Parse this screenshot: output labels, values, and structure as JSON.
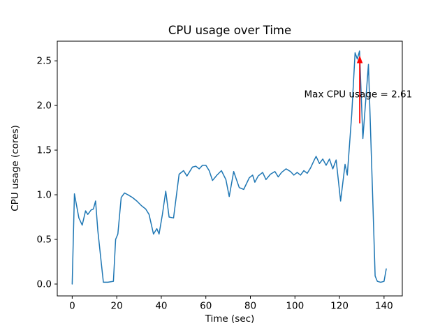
{
  "figure": {
    "background": "#ffffff"
  },
  "chart_data": {
    "type": "line",
    "title": "CPU usage over Time",
    "xlabel": "Time (sec)",
    "ylabel": "CPU usage (cores)",
    "line_color": "#1f77b4",
    "grid": false,
    "xlim": [
      -6.7,
      148.2
    ],
    "ylim": [
      -0.133,
      2.72
    ],
    "xticks": [
      0,
      20,
      40,
      60,
      80,
      100,
      120,
      140
    ],
    "yticks": [
      0.0,
      0.5,
      1.0,
      1.5,
      2.0,
      2.5
    ],
    "x": [
      0,
      1,
      3,
      4.5,
      6,
      7,
      8.5,
      9.5,
      10.5,
      11.5,
      13,
      14,
      16,
      18.5,
      19.5,
      20.5,
      22,
      23.5,
      25,
      27,
      29,
      31,
      33,
      34.5,
      36.5,
      38,
      39,
      40.5,
      42,
      43.5,
      45.5,
      48,
      50,
      51.5,
      54,
      55.5,
      57,
      58.5,
      60,
      61.5,
      63,
      65,
      67,
      69,
      70.5,
      72.5,
      75,
      77,
      79.5,
      81,
      82,
      83.5,
      85.5,
      87,
      89,
      91,
      92.5,
      94,
      96,
      98,
      99.5,
      101,
      102.5,
      104,
      105.5,
      107,
      108.5,
      109.5,
      111,
      112.5,
      114,
      115.5,
      117,
      118.5,
      120.5,
      122.5,
      123.5,
      125.5,
      127,
      128,
      129,
      130.5,
      133,
      135,
      136,
      137,
      138.5,
      140,
      141
    ],
    "y": [
      0.0,
      1.01,
      0.74,
      0.66,
      0.82,
      0.78,
      0.83,
      0.84,
      0.93,
      0.6,
      0.25,
      0.02,
      0.02,
      0.03,
      0.5,
      0.56,
      0.97,
      1.02,
      1.0,
      0.97,
      0.93,
      0.88,
      0.84,
      0.78,
      0.56,
      0.62,
      0.56,
      0.78,
      1.04,
      0.75,
      0.74,
      1.23,
      1.27,
      1.21,
      1.31,
      1.32,
      1.29,
      1.33,
      1.33,
      1.27,
      1.16,
      1.22,
      1.27,
      1.17,
      0.98,
      1.26,
      1.08,
      1.06,
      1.19,
      1.22,
      1.14,
      1.21,
      1.25,
      1.17,
      1.23,
      1.26,
      1.2,
      1.25,
      1.29,
      1.26,
      1.22,
      1.25,
      1.22,
      1.27,
      1.24,
      1.3,
      1.38,
      1.43,
      1.35,
      1.4,
      1.33,
      1.4,
      1.29,
      1.39,
      0.93,
      1.34,
      1.22,
      1.9,
      2.59,
      2.52,
      2.61,
      1.63,
      2.46,
      0.9,
      0.09,
      0.03,
      0.02,
      0.03,
      0.17
    ],
    "annotation": {
      "text": "Max CPU usage = 2.61",
      "color": "#ff0000",
      "text_x": 128.4,
      "text_y": 2.13,
      "arrow_x": 129.1,
      "arrow_y_from": 1.8,
      "arrow_y_to": 2.56
    }
  }
}
